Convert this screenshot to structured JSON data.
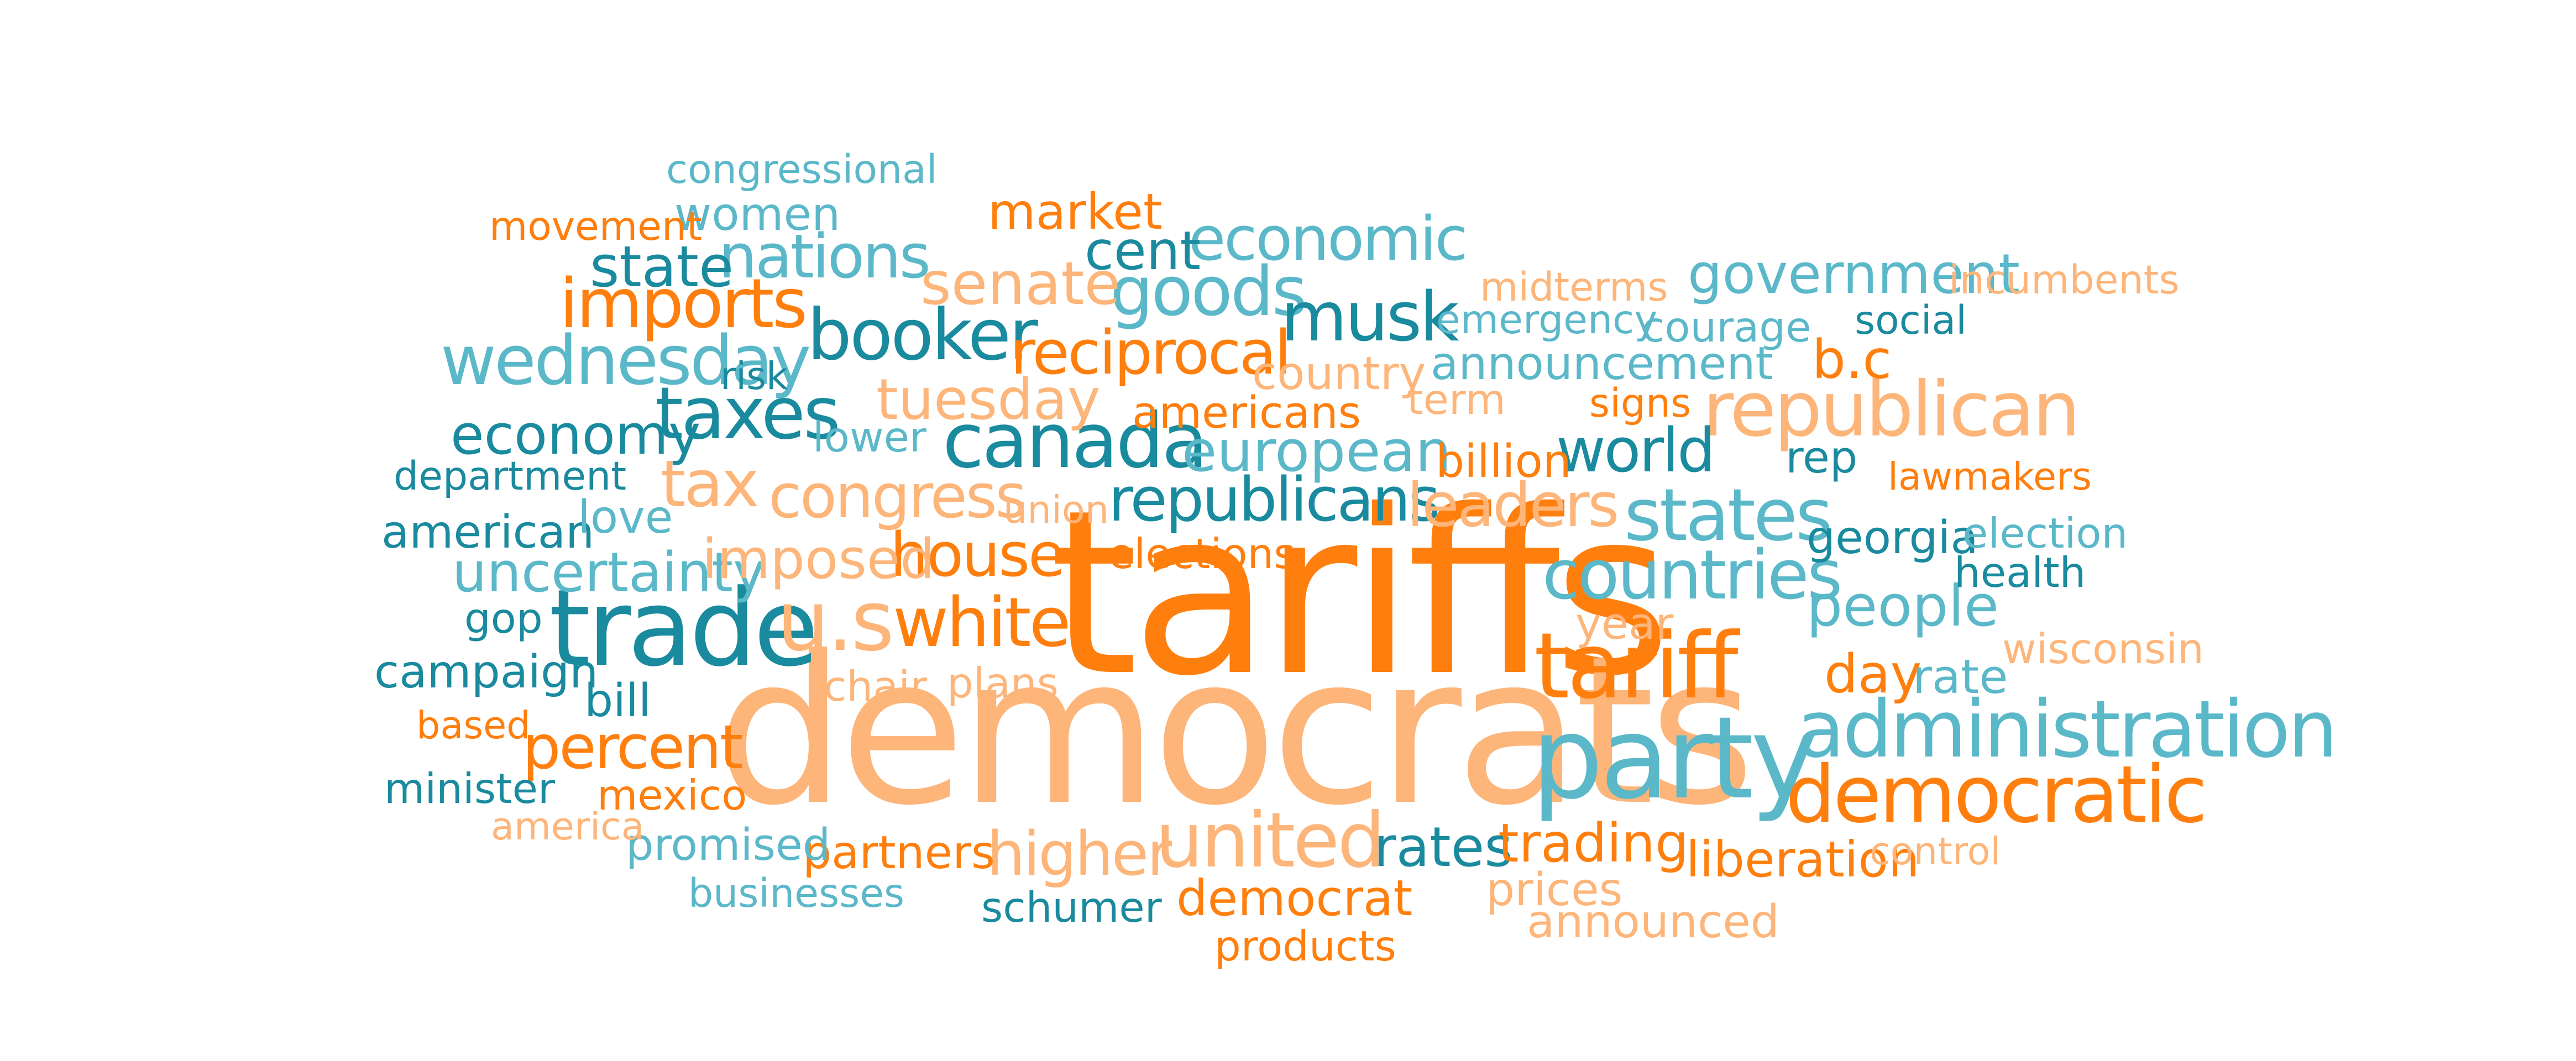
{
  "palette": {
    "dark_teal": "#1a8a9e",
    "light_teal": "#5bb8c9",
    "orange": "#ff7f0e",
    "peach": "#fdb57a"
  },
  "words": [
    {
      "text": "tariffs",
      "color": "orange"
    },
    {
      "text": "democrats",
      "color": "peach"
    },
    {
      "text": "trade",
      "color": "dark_teal"
    },
    {
      "text": "party",
      "color": "light_teal"
    },
    {
      "text": "administration",
      "color": "light_teal"
    },
    {
      "text": "tariff",
      "color": "orange"
    },
    {
      "text": "u.s",
      "color": "peach"
    },
    {
      "text": "canada",
      "color": "dark_teal"
    },
    {
      "text": "democratic",
      "color": "orange"
    },
    {
      "text": "united",
      "color": "peach"
    },
    {
      "text": "countries",
      "color": "light_teal"
    },
    {
      "text": "states",
      "color": "light_teal"
    },
    {
      "text": "republican",
      "color": "peach"
    },
    {
      "text": "white",
      "color": "orange"
    },
    {
      "text": "booker",
      "color": "dark_teal"
    },
    {
      "text": "goods",
      "color": "light_teal"
    },
    {
      "text": "imports",
      "color": "orange"
    },
    {
      "text": "taxes",
      "color": "dark_teal"
    },
    {
      "text": "wednesday",
      "color": "light_teal"
    },
    {
      "text": "nations",
      "color": "light_teal"
    },
    {
      "text": "reciprocal",
      "color": "orange"
    },
    {
      "text": "economic",
      "color": "light_teal"
    },
    {
      "text": "musk",
      "color": "dark_teal"
    },
    {
      "text": "congress",
      "color": "peach"
    },
    {
      "text": "republicans",
      "color": "dark_teal"
    },
    {
      "text": "house",
      "color": "orange"
    },
    {
      "text": "percent",
      "color": "orange"
    },
    {
      "text": "senate",
      "color": "peach"
    },
    {
      "text": "tax",
      "color": "peach"
    },
    {
      "text": "european",
      "color": "light_teal"
    },
    {
      "text": "leaders",
      "color": "peach"
    },
    {
      "text": "government",
      "color": "light_teal"
    },
    {
      "text": "higher",
      "color": "peach"
    },
    {
      "text": "rates",
      "color": "dark_teal"
    },
    {
      "text": "trading",
      "color": "orange"
    },
    {
      "text": "world",
      "color": "dark_teal"
    },
    {
      "text": "people",
      "color": "light_teal"
    },
    {
      "text": "state",
      "color": "dark_teal"
    },
    {
      "text": "economy",
      "color": "dark_teal"
    },
    {
      "text": "uncertainty",
      "color": "light_teal"
    },
    {
      "text": "imposed",
      "color": "peach"
    },
    {
      "text": "day",
      "color": "orange"
    },
    {
      "text": "tuesday",
      "color": "peach"
    },
    {
      "text": "democrat",
      "color": "orange"
    },
    {
      "text": "liberation",
      "color": "orange"
    },
    {
      "text": "b.c",
      "color": "orange"
    },
    {
      "text": "country",
      "color": "peach"
    },
    {
      "text": "market",
      "color": "orange"
    },
    {
      "text": "cent",
      "color": "dark_teal"
    },
    {
      "text": "campaign",
      "color": "dark_teal"
    },
    {
      "text": "american",
      "color": "dark_teal"
    },
    {
      "text": "partners",
      "color": "orange"
    },
    {
      "text": "rate",
      "color": "light_teal"
    },
    {
      "text": "announcement",
      "color": "light_teal"
    },
    {
      "text": "americans",
      "color": "orange"
    },
    {
      "text": "georgia",
      "color": "dark_teal"
    },
    {
      "text": "promised",
      "color": "light_teal"
    },
    {
      "text": "prices",
      "color": "peach"
    },
    {
      "text": "billion",
      "color": "orange"
    },
    {
      "text": "elections",
      "color": "orange"
    },
    {
      "text": "announced",
      "color": "peach"
    },
    {
      "text": "love",
      "color": "light_teal"
    },
    {
      "text": "bill",
      "color": "dark_teal"
    },
    {
      "text": "women",
      "color": "light_teal"
    },
    {
      "text": "congressional",
      "color": "light_teal"
    },
    {
      "text": "year",
      "color": "peach"
    },
    {
      "text": "rep",
      "color": "dark_teal"
    },
    {
      "text": "wisconsin",
      "color": "peach"
    },
    {
      "text": "chair",
      "color": "peach"
    },
    {
      "text": "plans",
      "color": "peach"
    },
    {
      "text": "products",
      "color": "orange"
    },
    {
      "text": "schumer",
      "color": "dark_teal"
    },
    {
      "text": "courage",
      "color": "light_teal"
    },
    {
      "text": "election",
      "color": "light_teal"
    },
    {
      "text": "health",
      "color": "dark_teal"
    },
    {
      "text": "term",
      "color": "peach"
    },
    {
      "text": "lower",
      "color": "light_teal"
    },
    {
      "text": "gop",
      "color": "dark_teal"
    },
    {
      "text": "mexico",
      "color": "orange"
    },
    {
      "text": "minister",
      "color": "dark_teal"
    },
    {
      "text": "lawmakers",
      "color": "orange"
    },
    {
      "text": "midterms",
      "color": "peach"
    },
    {
      "text": "incumbents",
      "color": "peach"
    },
    {
      "text": "movement",
      "color": "orange"
    },
    {
      "text": "social",
      "color": "dark_teal"
    },
    {
      "text": "emergency",
      "color": "light_teal"
    },
    {
      "text": "signs",
      "color": "orange"
    },
    {
      "text": "department",
      "color": "dark_teal"
    },
    {
      "text": "union",
      "color": "peach"
    },
    {
      "text": "risk",
      "color": "dark_teal"
    },
    {
      "text": "based",
      "color": "orange"
    },
    {
      "text": "america",
      "color": "peach"
    },
    {
      "text": "businesses",
      "color": "light_teal"
    },
    {
      "text": "control",
      "color": "peach"
    }
  ]
}
